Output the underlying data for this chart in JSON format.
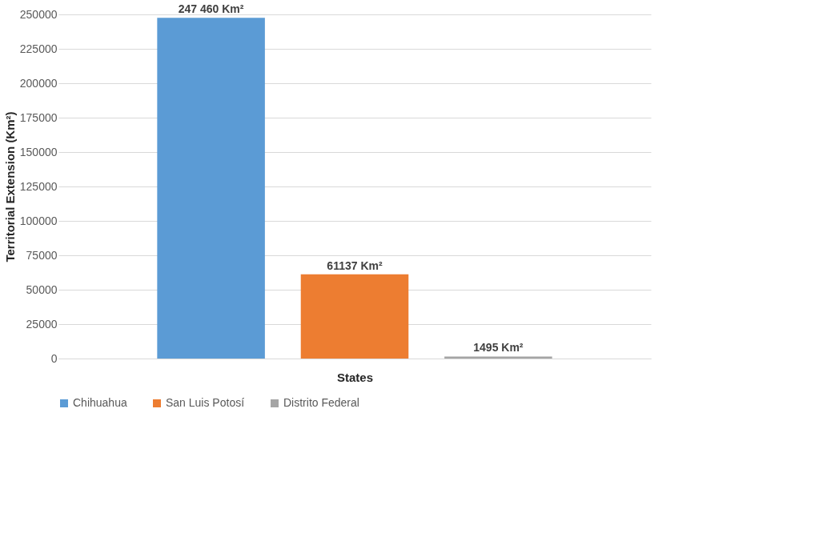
{
  "chart_data": {
    "type": "bar",
    "xlabel": "States",
    "ylabel": "Territorial Extension (Km²)",
    "categories": [
      null
    ],
    "series": [
      {
        "name": "Chihuahua",
        "color": "#5b9bd5",
        "values": [
          247460
        ],
        "value_labels": [
          "247 460 Km²"
        ]
      },
      {
        "name": "San Luis Potosí",
        "color": "#ed7d31",
        "values": [
          61137
        ],
        "value_labels": [
          "61137 Km²"
        ]
      },
      {
        "name": "Distrito Federal",
        "color": "#a5a5a5",
        "values": [
          1495
        ],
        "value_labels": [
          "1495 Km²"
        ]
      }
    ],
    "ylim": [
      0,
      250000
    ],
    "yticks": [
      0,
      25000,
      50000,
      75000,
      100000,
      125000,
      150000,
      175000,
      200000,
      225000,
      250000
    ],
    "grid": "y",
    "legend": "bottom"
  }
}
